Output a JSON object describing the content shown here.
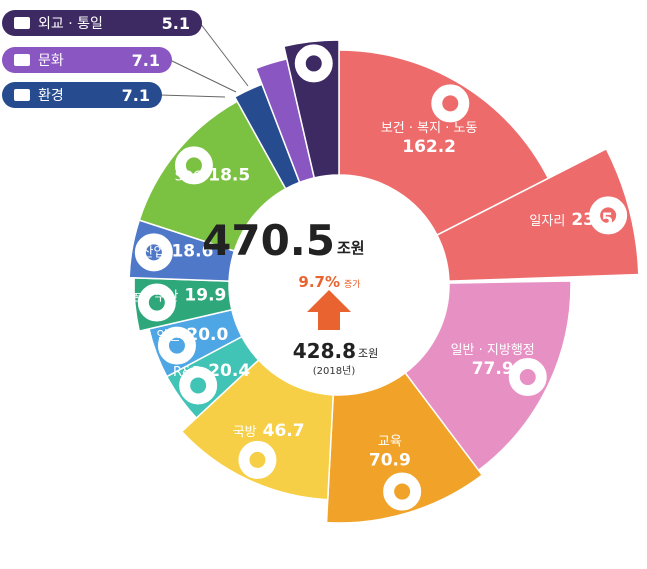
{
  "chart_data": {
    "type": "pie",
    "total": {
      "value": "470.5",
      "unit": "조원"
    },
    "change": {
      "value": "9.7%",
      "label": "증가"
    },
    "previous": {
      "value": "428.8",
      "unit": "조원",
      "year": "(2018년)"
    },
    "slices": [
      {
        "name": "보건 · 복지 · 노동",
        "value": 162.2,
        "color": "#ee6b6b",
        "icon": "family-icon"
      },
      {
        "name": "일자리",
        "value": 23.5,
        "color": "#ee6b6b",
        "icon": "worker-icon",
        "exploded": true
      },
      {
        "name": "일반 · 지방행정",
        "value": 77.9,
        "color": "#e690c4",
        "icon": "buildings-icon"
      },
      {
        "name": "교육",
        "value": 70.9,
        "color": "#f0a328",
        "icon": "graduate-icon"
      },
      {
        "name": "국방",
        "value": 46.7,
        "color": "#f7cf46",
        "icon": "tank-icon"
      },
      {
        "name": "R&D",
        "value": 20.4,
        "color": "#41c3b6",
        "icon": "microscope-icon"
      },
      {
        "name": "안전",
        "value": 20.0,
        "color": "#4fa6e4",
        "icon": "cctv-icon"
      },
      {
        "name": "농 · 수산",
        "value": 19.9,
        "color": "#2ea87b",
        "icon": "wheat-icon"
      },
      {
        "name": "산업",
        "value": 18.6,
        "color": "#4f79c8",
        "icon": "gears-icon"
      },
      {
        "name": "SOC",
        "value": 18.5,
        "color": "#7cc242",
        "icon": "excavator-icon"
      },
      {
        "name": "환경",
        "value": 7.1,
        "color": "#274b8f",
        "icon": "mountain-icon"
      },
      {
        "name": "문화",
        "value": 7.1,
        "color": "#8a56c2",
        "icon": "film-icon"
      },
      {
        "name": "외교 · 통일",
        "value": 5.1,
        "color": "#3d2a63",
        "icon": "handshake-icon"
      }
    ],
    "callouts": [
      {
        "name": "외교 · 통일",
        "value": "5.1",
        "color": "#3d2a63",
        "icon": "handshake-icon"
      },
      {
        "name": "문화",
        "value": "7.1",
        "color": "#8a56c2",
        "icon": "film-icon"
      },
      {
        "name": "환경",
        "value": "7.1",
        "color": "#274b8f",
        "icon": "mountain-icon"
      }
    ]
  }
}
